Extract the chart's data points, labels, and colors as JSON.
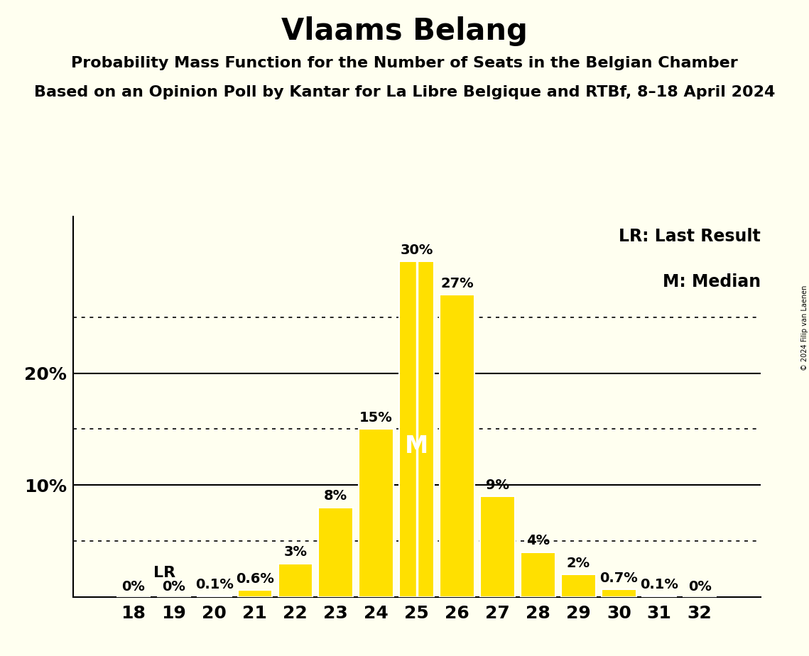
{
  "title": "Vlaams Belang",
  "subtitle1": "Probability Mass Function for the Number of Seats in the Belgian Chamber",
  "subtitle2": "Based on an Opinion Poll by Kantar for La Libre Belgique and RTBf, 8–18 April 2024",
  "copyright": "© 2024 Filip van Laenen",
  "seats": [
    18,
    19,
    20,
    21,
    22,
    23,
    24,
    25,
    26,
    27,
    28,
    29,
    30,
    31,
    32
  ],
  "probabilities": [
    0.0,
    0.0,
    0.1,
    0.6,
    3.0,
    8.0,
    15.0,
    30.0,
    27.0,
    9.0,
    4.0,
    2.0,
    0.7,
    0.1,
    0.0
  ],
  "labels": [
    "0%",
    "0%",
    "0.1%",
    "0.6%",
    "3%",
    "8%",
    "15%",
    "30%",
    "27%",
    "9%",
    "4%",
    "2%",
    "0.7%",
    "0.1%",
    "0%"
  ],
  "bar_color": "#FFE000",
  "bar_edge_color": "#FFFFFF",
  "background_color": "#FFFFF0",
  "text_color": "#000000",
  "median_seat": 25,
  "last_result_seat": 18,
  "solid_gridlines": [
    10,
    20
  ],
  "dotted_gridlines": [
    5,
    15,
    25
  ],
  "legend_lr": "LR: Last Result",
  "legend_m": "M: Median",
  "lr_label": "LR",
  "m_label": "M",
  "title_fontsize": 30,
  "subtitle_fontsize": 16,
  "axis_fontsize": 18,
  "label_fontsize": 14,
  "legend_fontsize": 17,
  "ylim_max": 34
}
